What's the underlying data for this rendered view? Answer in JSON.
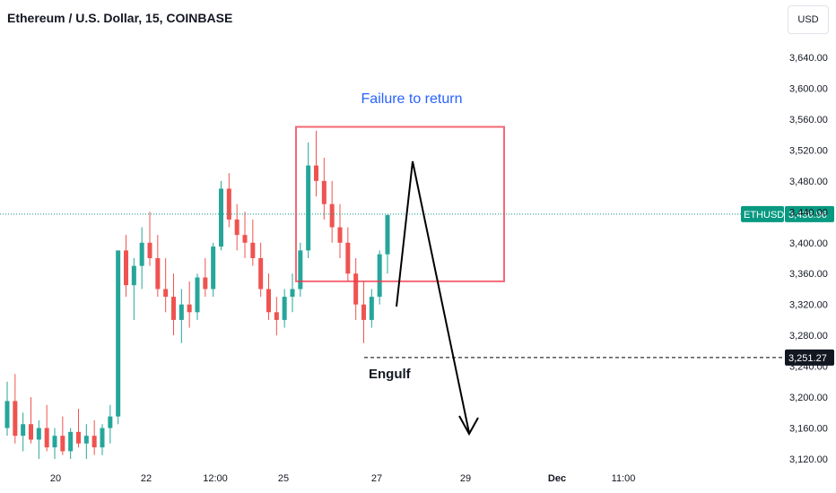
{
  "header": {
    "title": "Ethereum / U.S. Dollar, 15, COINBASE",
    "currency": "USD"
  },
  "chart_data": {
    "type": "candlestick",
    "symbol": "ETHUSD",
    "ylim": [
      3120,
      3660
    ],
    "y_ticks": [
      "3,640.00",
      "3,600.00",
      "3,560.00",
      "3,520.00",
      "3,480.00",
      "3,440.00",
      "3,400.00",
      "3,360.00",
      "3,320.00",
      "3,280.00",
      "3,240.00",
      "3,200.00",
      "3,160.00",
      "3,120.00"
    ],
    "x_ticks": [
      {
        "label": "20",
        "bold": false
      },
      {
        "label": "22",
        "bold": false
      },
      {
        "label": "12:00",
        "bold": false
      },
      {
        "label": "25",
        "bold": false
      },
      {
        "label": "27",
        "bold": false
      },
      {
        "label": "29",
        "bold": false
      },
      {
        "label": "Dec",
        "bold": true
      },
      {
        "label": "11:00",
        "bold": false
      }
    ],
    "up_color": "#26a69a",
    "down_color": "#ef5350",
    "last_price": {
      "label": "ETHUSD",
      "value": "3,436.96",
      "price": 3436.96,
      "color": "#089981"
    },
    "level_line": {
      "value": "3,251.27",
      "price": 3251.27,
      "color": "#000000"
    },
    "box": {
      "price_top": 3550,
      "price_bottom": 3350,
      "color": "#f23645"
    },
    "annotations": {
      "failure_text": "Failure to return",
      "engulf_text": "Engulf"
    },
    "price_path_points": [
      [
        3160,
        3220,
        3150,
        3195
      ],
      [
        3195,
        3230,
        3140,
        3150
      ],
      [
        3150,
        3180,
        3130,
        3165
      ],
      [
        3165,
        3200,
        3140,
        3145
      ],
      [
        3145,
        3170,
        3120,
        3160
      ],
      [
        3160,
        3190,
        3130,
        3135
      ],
      [
        3135,
        3160,
        3120,
        3150
      ],
      [
        3150,
        3175,
        3125,
        3130
      ],
      [
        3130,
        3160,
        3120,
        3155
      ],
      [
        3155,
        3185,
        3135,
        3140
      ],
      [
        3140,
        3165,
        3120,
        3150
      ],
      [
        3150,
        3170,
        3125,
        3135
      ],
      [
        3135,
        3165,
        3125,
        3160
      ],
      [
        3160,
        3190,
        3140,
        3175
      ],
      [
        3175,
        3210,
        3165,
        3390
      ],
      [
        3390,
        3410,
        3330,
        3345
      ],
      [
        3345,
        3380,
        3300,
        3370
      ],
      [
        3370,
        3420,
        3340,
        3400
      ],
      [
        3400,
        3440,
        3370,
        3380
      ],
      [
        3380,
        3410,
        3330,
        3340
      ],
      [
        3340,
        3380,
        3310,
        3330
      ],
      [
        3330,
        3360,
        3280,
        3300
      ],
      [
        3300,
        3340,
        3270,
        3320
      ],
      [
        3320,
        3350,
        3290,
        3310
      ],
      [
        3310,
        3360,
        3300,
        3355
      ],
      [
        3355,
        3380,
        3330,
        3340
      ],
      [
        3340,
        3400,
        3330,
        3395
      ],
      [
        3395,
        3480,
        3390,
        3470
      ],
      [
        3470,
        3490,
        3420,
        3430
      ],
      [
        3430,
        3450,
        3390,
        3410
      ],
      [
        3410,
        3440,
        3380,
        3400
      ],
      [
        3400,
        3430,
        3370,
        3380
      ],
      [
        3380,
        3400,
        3330,
        3340
      ],
      [
        3340,
        3360,
        3300,
        3310
      ],
      [
        3310,
        3330,
        3280,
        3300
      ],
      [
        3300,
        3340,
        3290,
        3330
      ],
      [
        3330,
        3360,
        3310,
        3340
      ],
      [
        3340,
        3400,
        3330,
        3390
      ],
      [
        3390,
        3530,
        3380,
        3500
      ],
      [
        3500,
        3545,
        3460,
        3480
      ],
      [
        3480,
        3510,
        3430,
        3450
      ],
      [
        3450,
        3480,
        3400,
        3420
      ],
      [
        3420,
        3450,
        3380,
        3400
      ],
      [
        3400,
        3420,
        3350,
        3360
      ],
      [
        3360,
        3380,
        3300,
        3320
      ],
      [
        3320,
        3350,
        3270,
        3300
      ],
      [
        3300,
        3340,
        3290,
        3330
      ],
      [
        3330,
        3390,
        3320,
        3385
      ],
      [
        3385,
        3420,
        3360,
        3436
      ]
    ]
  }
}
